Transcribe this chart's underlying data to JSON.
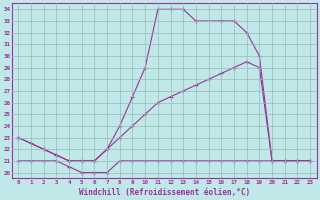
{
  "xlabel": "Windchill (Refroidissement éolien,°C)",
  "ylabel_ticks": [
    20,
    21,
    22,
    23,
    24,
    25,
    26,
    27,
    28,
    29,
    30,
    31,
    32,
    33,
    34
  ],
  "xlim": [
    -0.5,
    23.5
  ],
  "ylim": [
    19.5,
    34.5
  ],
  "bg_color": "#c0e8e8",
  "line_color": "#993399",
  "grid_color": "#99bbbb",
  "x_ticks": [
    0,
    1,
    2,
    3,
    4,
    5,
    6,
    7,
    8,
    9,
    10,
    11,
    12,
    13,
    14,
    15,
    16,
    17,
    18,
    19,
    20,
    21,
    22,
    23
  ],
  "line1_x": [
    0,
    1,
    2,
    3,
    4,
    5,
    6,
    7,
    8,
    9,
    10,
    11,
    12,
    13,
    14,
    15,
    16,
    17,
    18,
    19,
    20,
    21,
    22,
    23
  ],
  "line1_y": [
    21,
    21,
    21,
    21,
    20.5,
    20,
    20,
    20,
    21,
    21,
    21,
    21,
    21,
    21,
    21,
    21,
    21,
    21,
    21,
    21,
    21,
    21,
    21,
    21
  ],
  "line2_x": [
    0,
    1,
    2,
    3,
    4,
    5,
    6,
    7,
    8,
    9,
    10,
    11,
    12,
    13,
    14,
    15,
    16,
    17,
    18,
    19,
    20,
    21,
    22,
    23
  ],
  "line2_y": [
    23,
    22.5,
    22,
    21.5,
    21,
    21,
    21,
    22,
    23,
    24,
    25,
    26,
    26.5,
    27,
    27.5,
    28,
    28.5,
    29,
    29.5,
    29,
    21,
    21,
    21,
    21
  ],
  "line3_x": [
    0,
    2,
    3,
    4,
    5,
    6,
    7,
    8,
    9,
    10,
    11,
    12,
    13,
    14,
    16,
    17,
    18,
    19,
    20,
    21,
    22,
    23
  ],
  "line3_y": [
    23,
    22,
    21.5,
    21,
    21,
    21,
    22,
    24,
    26.5,
    29,
    34,
    34,
    34,
    33,
    33,
    33,
    32,
    30,
    21,
    21,
    21,
    21
  ]
}
